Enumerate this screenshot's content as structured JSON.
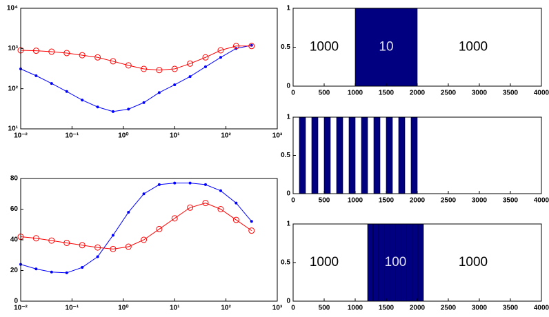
{
  "chart_data": [
    {
      "type": "line",
      "xscale": "log",
      "yscale": "log",
      "x": [
        0.01,
        0.02,
        0.04,
        0.079,
        0.158,
        0.316,
        0.631,
        1.26,
        2.51,
        5.01,
        10,
        20,
        40,
        79,
        158,
        316
      ],
      "series": [
        {
          "color": "#0000ff",
          "marker": "dot",
          "values": [
            310,
            210,
            135,
            85,
            52,
            35,
            27,
            31,
            45,
            80,
            125,
            200,
            350,
            600,
            1000,
            1200
          ]
        },
        {
          "color": "#ff0000",
          "marker": "circle",
          "values": [
            900,
            880,
            830,
            770,
            680,
            600,
            480,
            380,
            310,
            290,
            310,
            420,
            600,
            900,
            1150,
            1150
          ]
        }
      ],
      "xlim": [
        0.01,
        1000
      ],
      "ylim": [
        10,
        10000
      ],
      "xticks": [
        {
          "value": 0.01,
          "label": "10⁻²"
        },
        {
          "value": 0.1,
          "label": "10⁻¹"
        },
        {
          "value": 1,
          "label": "10⁰"
        },
        {
          "value": 10,
          "label": "10¹"
        },
        {
          "value": 100,
          "label": "10²"
        },
        {
          "value": 1000,
          "label": "10³"
        }
      ],
      "yticks": [
        {
          "value": 10,
          "label": "10¹"
        },
        {
          "value": 100,
          "label": "10²"
        },
        {
          "value": 1000,
          "label": "10³"
        },
        {
          "value": 10000,
          "label": "10⁴"
        }
      ]
    },
    {
      "type": "bar",
      "color": "#000080",
      "x_left": [
        1000
      ],
      "x_right": [
        2000
      ],
      "values": [
        1
      ],
      "xlim": [
        0,
        4000
      ],
      "ylim": [
        0,
        1
      ],
      "xticks": [
        0,
        500,
        1000,
        1500,
        2000,
        2500,
        3000,
        3500,
        4000
      ],
      "yticks": [
        0,
        0.5,
        1
      ],
      "annotations": [
        {
          "text": "1000",
          "x": 500,
          "y": 0.5,
          "color": "#000000"
        },
        {
          "text": "10",
          "x": 1500,
          "y": 0.5,
          "color": "#e0e0f0"
        },
        {
          "text": "1000",
          "x": 2900,
          "y": 0.5,
          "color": "#000000"
        }
      ]
    },
    {
      "type": "bar",
      "color": "#000080",
      "x_left": [
        100,
        300,
        500,
        700,
        900,
        1100,
        1300,
        1500,
        1700,
        1900
      ],
      "x_right": [
        200,
        400,
        600,
        800,
        1000,
        1200,
        1400,
        1600,
        1800,
        2000
      ],
      "values": [
        1,
        1,
        1,
        1,
        1,
        1,
        1,
        1,
        1,
        1
      ],
      "xlim": [
        0,
        4000
      ],
      "ylim": [
        0,
        1
      ],
      "xticks": [
        0,
        500,
        1000,
        1500,
        2000,
        2500,
        3000,
        3500,
        4000
      ],
      "yticks": [
        0,
        0.5,
        1
      ]
    },
    {
      "type": "line",
      "xscale": "log",
      "x": [
        0.01,
        0.02,
        0.04,
        0.079,
        0.158,
        0.316,
        0.631,
        1.26,
        2.51,
        5.01,
        10,
        20,
        40,
        79,
        158,
        316
      ],
      "series": [
        {
          "color": "#0000ff",
          "marker": "dot",
          "values": [
            24,
            21,
            19,
            18.5,
            22,
            29,
            43,
            58,
            70,
            76,
            77,
            77,
            76,
            72,
            64,
            52
          ]
        },
        {
          "color": "#ff0000",
          "marker": "circle",
          "values": [
            42,
            41,
            39.5,
            38,
            36.5,
            35,
            34,
            35.5,
            40,
            47,
            54,
            61,
            64,
            60,
            53,
            46
          ]
        }
      ],
      "xlim": [
        0.01,
        1000
      ],
      "ylim": [
        0,
        80
      ],
      "xticks": [
        {
          "value": 0.01,
          "label": "10⁻²"
        },
        {
          "value": 0.1,
          "label": "10⁻¹"
        },
        {
          "value": 1,
          "label": "10⁰"
        },
        {
          "value": 10,
          "label": "10¹"
        },
        {
          "value": 100,
          "label": "10²"
        },
        {
          "value": 1000,
          "label": "10³"
        }
      ],
      "yticks": [
        0,
        20,
        40,
        60,
        80
      ]
    },
    {
      "type": "bar",
      "color": "#000080",
      "x_left": [
        1200,
        1290,
        1380,
        1470,
        1560,
        1650,
        1740,
        1830,
        1920,
        2010
      ],
      "x_right": [
        1290,
        1380,
        1470,
        1560,
        1650,
        1740,
        1830,
        1920,
        2010,
        2100
      ],
      "values": [
        1,
        1,
        1,
        1,
        1,
        1,
        1,
        1,
        1,
        1
      ],
      "xlim": [
        0,
        4000
      ],
      "ylim": [
        0,
        1
      ],
      "xticks": [
        0,
        500,
        1000,
        1500,
        2000,
        2500,
        3000,
        3500,
        4000
      ],
      "yticks": [
        0,
        0.5,
        1
      ],
      "annotations": [
        {
          "text": "1000",
          "x": 500,
          "y": 0.5,
          "color": "#000000"
        },
        {
          "text": "100",
          "x": 1650,
          "y": 0.5,
          "color": "#e0e0f0"
        },
        {
          "text": "1000",
          "x": 2900,
          "y": 0.5,
          "color": "#000000"
        }
      ]
    }
  ]
}
